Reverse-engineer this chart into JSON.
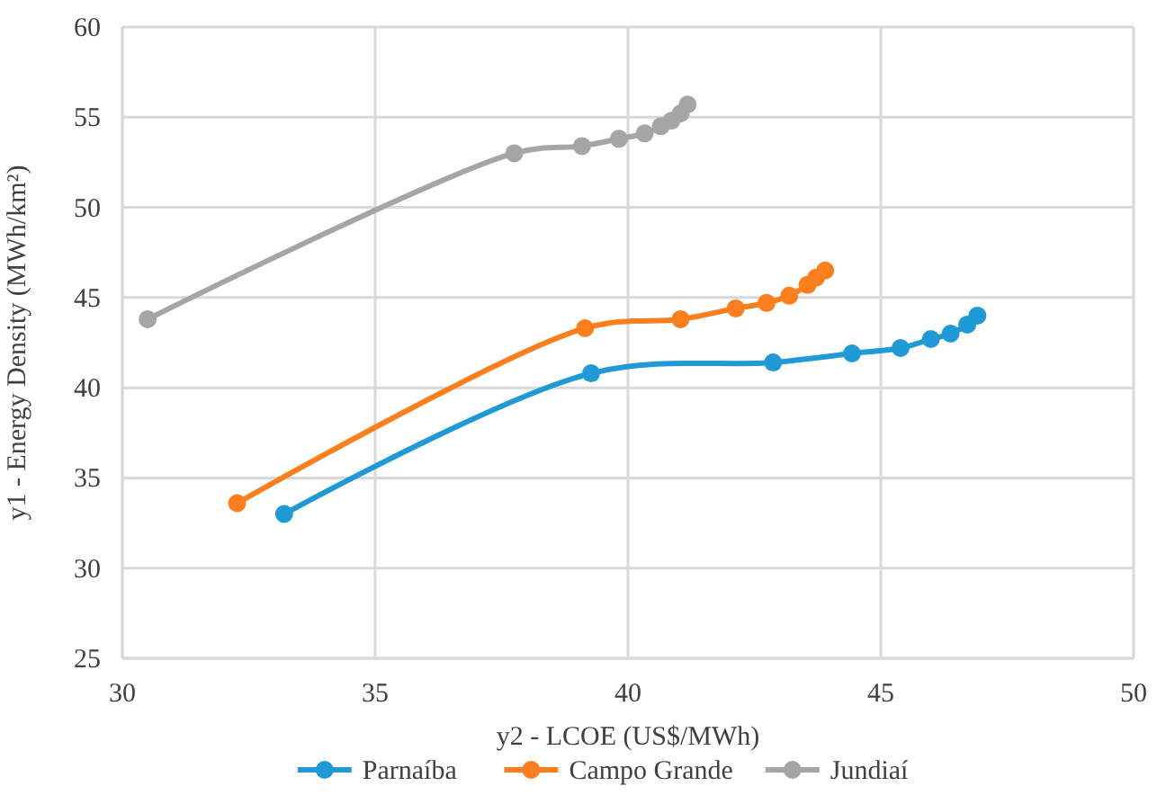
{
  "chart_data": {
    "type": "line",
    "xlabel": "y2 - LCOE (US$/MWh)",
    "ylabel": "y1 - Energy Density (MWh/km²)",
    "xlim": [
      30,
      50
    ],
    "xticks": [
      30,
      35,
      40,
      45,
      50
    ],
    "ylim": [
      25,
      60
    ],
    "yticks": [
      25,
      30,
      35,
      40,
      45,
      50,
      55,
      60
    ],
    "grid": true,
    "legend": "bottom",
    "marker": "circle",
    "line_style": "solid",
    "series": [
      {
        "name": "Parnaíba",
        "color": "#1f9ad6",
        "x": [
          33.2,
          39.27,
          42.87,
          44.43,
          45.39,
          45.99,
          46.38,
          46.71,
          46.91
        ],
        "values": [
          33.0,
          40.8,
          41.4,
          41.9,
          42.2,
          42.7,
          43.0,
          43.5,
          44.0
        ]
      },
      {
        "name": "Campo Grande",
        "color": "#fd7e1c",
        "x": [
          32.27,
          39.15,
          41.04,
          42.13,
          42.74,
          43.19,
          43.55,
          43.72,
          43.9
        ],
        "values": [
          33.6,
          43.3,
          43.8,
          44.4,
          44.7,
          45.1,
          45.7,
          46.1,
          46.5
        ]
      },
      {
        "name": "Jundiaí",
        "color": "#a5a5a5",
        "x": [
          30.5,
          37.75,
          39.09,
          39.82,
          40.33,
          40.65,
          40.86,
          41.04,
          41.18
        ],
        "values": [
          43.8,
          53.0,
          53.4,
          53.8,
          54.1,
          54.5,
          54.8,
          55.2,
          55.7
        ]
      }
    ]
  }
}
